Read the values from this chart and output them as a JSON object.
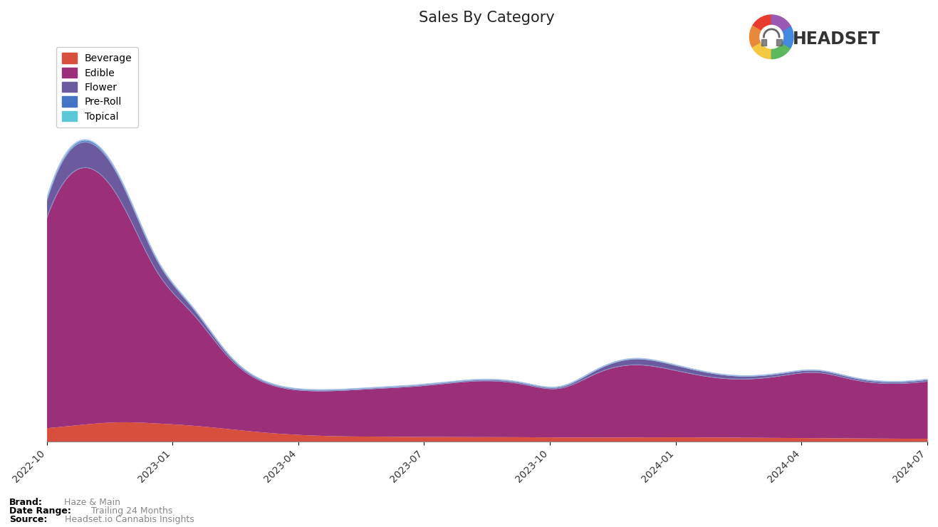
{
  "title": "Sales By Category",
  "title_fontsize": 15,
  "background_color": "#ffffff",
  "plot_background": "#ffffff",
  "categories": [
    "Beverage",
    "Edible",
    "Flower",
    "Pre-Roll",
    "Topical"
  ],
  "colors": [
    "#d94f3d",
    "#9b2f7a",
    "#6b5b9e",
    "#4472c4",
    "#5bc8d8"
  ],
  "x_labels": [
    "2022-10",
    "2023-01",
    "2023-04",
    "2023-07",
    "2023-10",
    "2024-01",
    "2024-04",
    "2024-07"
  ],
  "brand": "Haze & Main",
  "date_range": "Trailing 24 Months",
  "source": "Headset.io Cannabis Insights",
  "footnote_bold_color": "#000000",
  "footnote_gray_color": "#888888",
  "time_points": 25,
  "beverage": [
    1200,
    1500,
    1700,
    1600,
    1400,
    1100,
    800,
    600,
    500,
    470,
    450,
    440,
    430,
    420,
    400,
    390,
    400,
    410,
    400,
    380,
    360,
    340,
    320,
    300,
    290
  ],
  "edible": [
    18000,
    22000,
    19000,
    13000,
    9500,
    6000,
    4200,
    3800,
    3900,
    4100,
    4300,
    4600,
    4800,
    4500,
    4200,
    5500,
    6200,
    5800,
    5200,
    5000,
    5300,
    5600,
    5000,
    4700,
    4900
  ],
  "flower": [
    1500,
    2200,
    1800,
    1000,
    500,
    200,
    100,
    80,
    70,
    70,
    80,
    90,
    100,
    110,
    120,
    300,
    500,
    450,
    350,
    250,
    200,
    180,
    160,
    140,
    150
  ],
  "preroll": [
    100,
    150,
    120,
    80,
    50,
    30,
    20,
    15,
    12,
    12,
    12,
    12,
    12,
    12,
    12,
    20,
    30,
    25,
    20,
    15,
    12,
    10,
    10,
    10,
    10
  ],
  "topical": [
    30,
    40,
    35,
    25,
    20,
    15,
    10,
    8,
    8,
    8,
    8,
    8,
    8,
    8,
    8,
    8,
    8,
    8,
    8,
    8,
    8,
    8,
    8,
    8,
    8
  ]
}
